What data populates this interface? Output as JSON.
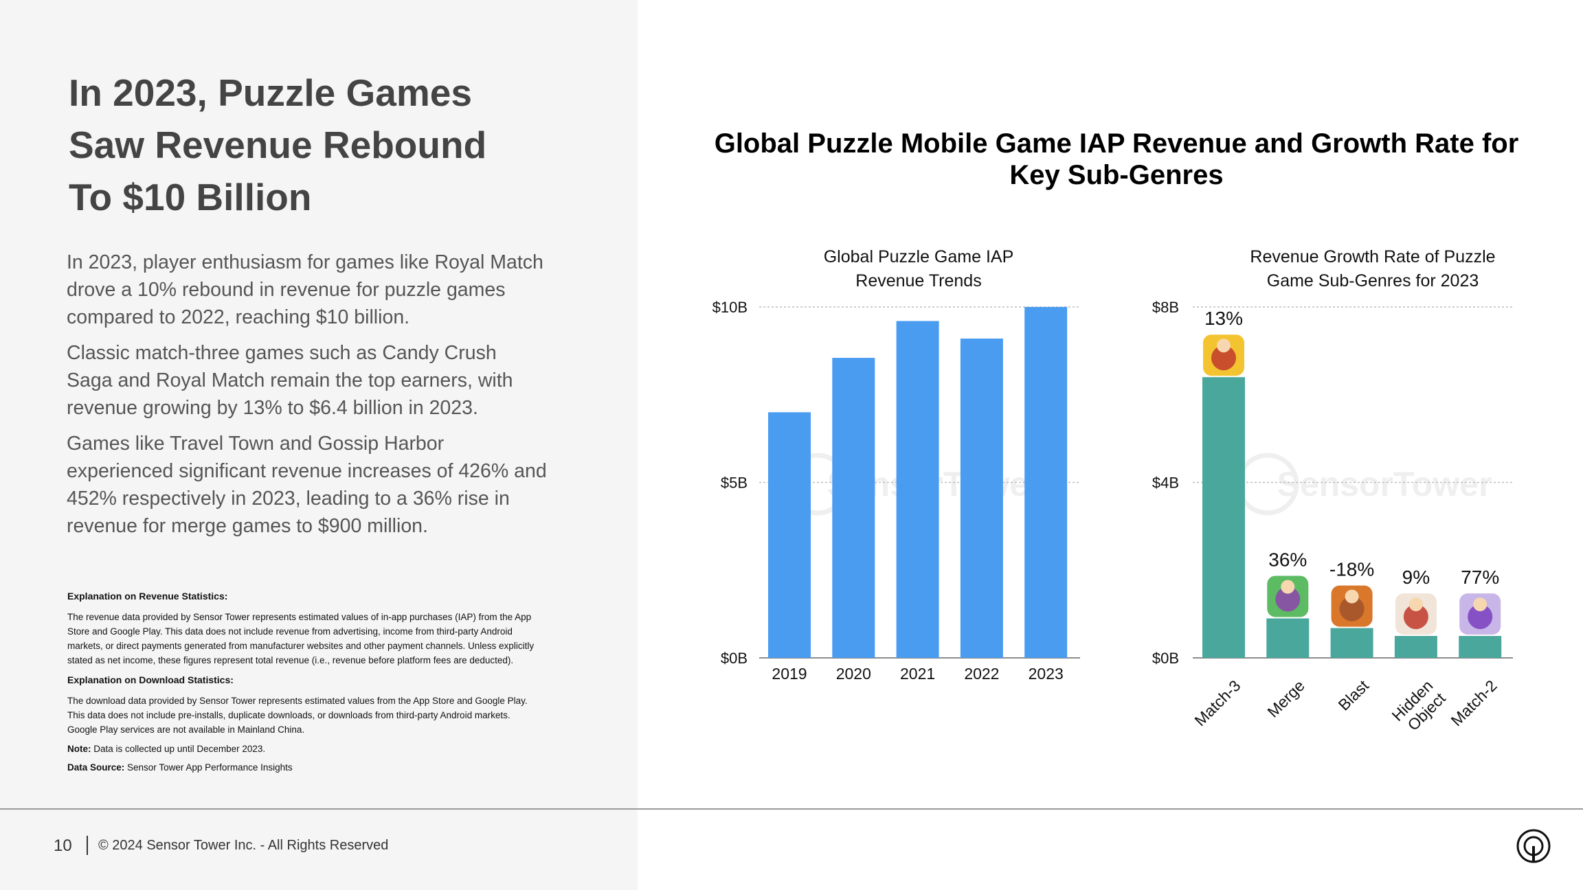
{
  "headline": {
    "lines": [
      "In 2023, Puzzle Games",
      "Saw Revenue Rebound",
      "To $10 Billion"
    ]
  },
  "body": {
    "paragraphs": [
      "In 2023, player enthusiasm for games like Royal Match drove a 10% rebound in revenue for puzzle games compared to 2022, reaching $10 billion.",
      "Classic match-three games such as Candy Crush Saga and Royal Match remain the top earners, with revenue growing by 13% to $6.4 billion in 2023.",
      "Games like Travel Town and Gossip Harbor experienced significant revenue increases of 426% and 452% respectively in 2023, leading to a 36% rise in revenue for merge games to $900 million."
    ]
  },
  "notes": {
    "revenue_title": "Explanation on Revenue Statistics:",
    "revenue_body": "The revenue data provided by Sensor Tower represents estimated values of in-app purchases (IAP) from the App Store and Google Play. This data does not include revenue from advertising, income from third-party Android markets, or direct payments generated from manufacturer websites and other payment channels. Unless explicitly stated as net income, these figures represent total revenue (i.e., revenue before platform fees are deducted).",
    "download_title": "Explanation on Download Statistics:",
    "download_body": "The download data provided by Sensor Tower represents estimated values from the App Store and Google Play. This data does not include pre-installs, duplicate downloads, or downloads from third-party Android markets. Google Play services are not available in Mainland China.",
    "note_label": "Note:",
    "note_text": " Data is collected up until December 2023.",
    "source_label": "Data Source:",
    "source_text": " Sensor Tower App Performance Insights"
  },
  "footer": {
    "page_number": "10",
    "copyright": "© 2024 Sensor Tower Inc. - All Rights Reserved",
    "logo_icon": "sensor-tower-logo-icon"
  },
  "chart_main_title": "Global Puzzle Mobile Game IAP Revenue and Growth Rate for Key Sub-Genres",
  "watermark": "SensorTower",
  "chart_data": [
    {
      "type": "bar",
      "title_lines": [
        "Global Puzzle Game IAP",
        "Revenue Trends"
      ],
      "categories": [
        "2019",
        "2020",
        "2021",
        "2022",
        "2023"
      ],
      "values": [
        7.0,
        8.55,
        9.6,
        9.1,
        10.0
      ],
      "ylim": [
        0,
        10
      ],
      "yticks": [
        {
          "value": 0,
          "label": "$0B"
        },
        {
          "value": 5,
          "label": "$5B"
        },
        {
          "value": 10,
          "label": "$10B"
        }
      ],
      "grid": true,
      "color": "#4a9cf0"
    },
    {
      "type": "bar",
      "title_lines": [
        "Revenue Growth Rate of Puzzle",
        "Game Sub-Genres for 2023"
      ],
      "categories": [
        {
          "lines": [
            "Match-3"
          ]
        },
        {
          "lines": [
            "Merge"
          ]
        },
        {
          "lines": [
            "Blast"
          ]
        },
        {
          "lines": [
            "Hidden",
            "Object"
          ]
        },
        {
          "lines": [
            "Match-2"
          ]
        }
      ],
      "values": [
        6.4,
        0.9,
        0.68,
        0.5,
        0.5
      ],
      "growth_labels": [
        "13%",
        "36%",
        "-18%",
        "9%",
        "77%"
      ],
      "ylim": [
        0,
        8
      ],
      "yticks": [
        {
          "value": 0,
          "label": "$0B"
        },
        {
          "value": 4,
          "label": "$4B"
        },
        {
          "value": 8,
          "label": "$8B"
        }
      ],
      "grid": true,
      "color": "#4aa79b",
      "app_icons": [
        "match3-king-avatar-icon",
        "merge-girl-avatar-icon",
        "blast-bear-icon",
        "hidden-object-girl-icon",
        "match2-butterfly-icon"
      ]
    }
  ]
}
